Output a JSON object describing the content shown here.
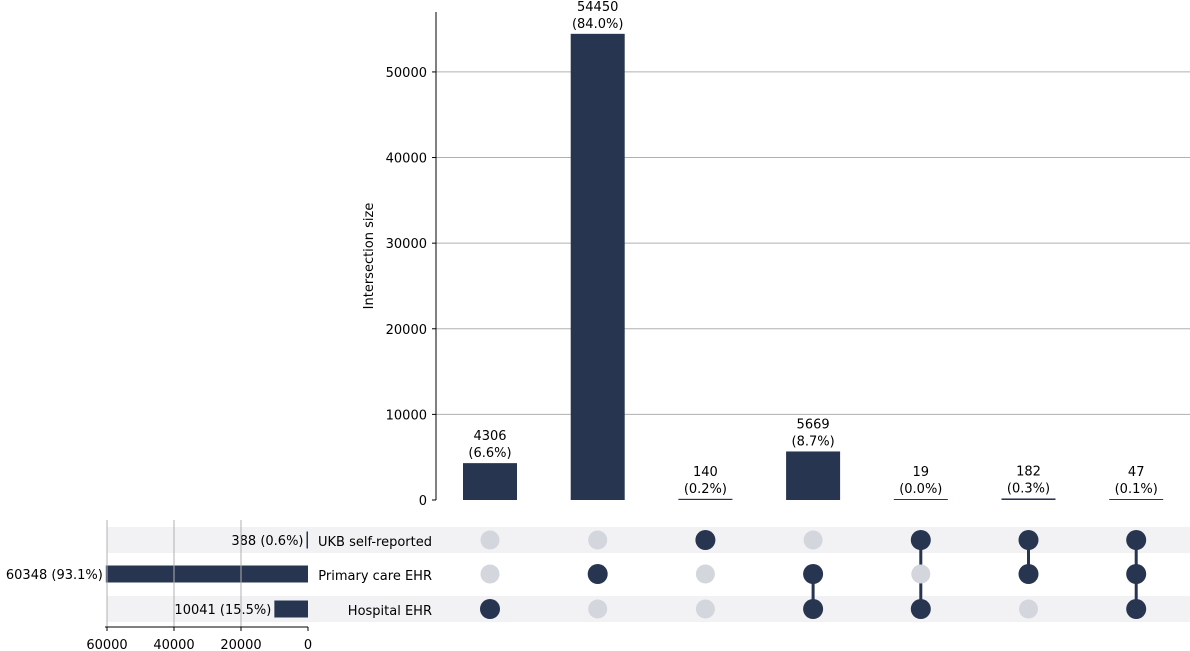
{
  "chart_data": {
    "type": "bar",
    "ylabel": "Intersection size",
    "ylim": [
      0,
      57000
    ],
    "yticks": [
      0,
      10000,
      20000,
      30000,
      40000,
      50000
    ],
    "grid": true,
    "sets": [
      {
        "name": "UKB self-reported",
        "size": 388,
        "size_label": "388 (0.6%)"
      },
      {
        "name": "Primary care EHR",
        "size": 60348,
        "size_label": "60348 (93.1%)"
      },
      {
        "name": "Hospital EHR",
        "size": 10041,
        "size_label": "10041 (15.5%)"
      }
    ],
    "set_size_xlim": [
      0,
      60000
    ],
    "set_size_ticks": [
      60000,
      40000,
      20000,
      0
    ],
    "intersections": [
      {
        "value": 4306,
        "label": "4306",
        "pct": "(6.6%)",
        "members": [
          false,
          false,
          true
        ]
      },
      {
        "value": 54450,
        "label": "54450",
        "pct": "(84.0%)",
        "members": [
          false,
          true,
          false
        ]
      },
      {
        "value": 140,
        "label": "140",
        "pct": "(0.2%)",
        "members": [
          true,
          false,
          false
        ]
      },
      {
        "value": 5669,
        "label": "5669",
        "pct": "(8.7%)",
        "members": [
          false,
          true,
          true
        ]
      },
      {
        "value": 19,
        "label": "19",
        "pct": "(0.0%)",
        "members": [
          true,
          false,
          true
        ]
      },
      {
        "value": 182,
        "label": "182",
        "pct": "(0.3%)",
        "members": [
          true,
          true,
          false
        ]
      },
      {
        "value": 47,
        "label": "47",
        "pct": "(0.1%)",
        "members": [
          true,
          true,
          true
        ]
      }
    ],
    "colors": {
      "bar": "#283550",
      "dot_active": "#283550",
      "dot_inactive": "#d3d6dc",
      "row_shade": "#f2f2f4",
      "grid": "#b0b0b0"
    }
  }
}
